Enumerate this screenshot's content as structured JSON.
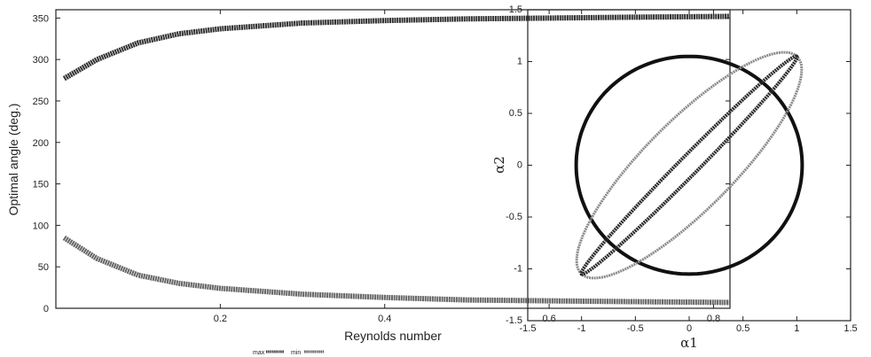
{
  "chart_data": [
    {
      "type": "line",
      "xlabel": "Reynolds number",
      "ylabel": "Optimal angle (deg.)",
      "xlim": [
        0,
        0.82
      ],
      "ylim": [
        0,
        360
      ],
      "xticks": [
        "0.2",
        "0.4",
        "0.6",
        "0.8"
      ],
      "xtick_values": [
        0.2,
        0.4,
        0.6,
        0.8
      ],
      "yticks": [
        "0",
        "50",
        "100",
        "150",
        "200",
        "250",
        "300",
        "350"
      ],
      "ytick_values": [
        0,
        50,
        100,
        150,
        200,
        250,
        300,
        350
      ],
      "legend": {
        "placement": "bottom-center",
        "entries": [
          "max",
          "min"
        ]
      },
      "series": [
        {
          "name": "max",
          "color": "#333333",
          "x": [
            0.01,
            0.05,
            0.1,
            0.15,
            0.2,
            0.3,
            0.4,
            0.5,
            0.6,
            0.7,
            0.82
          ],
          "y": [
            277,
            300,
            320,
            331,
            337,
            344,
            347,
            349,
            350,
            351,
            352
          ]
        },
        {
          "name": "min",
          "color": "#666666",
          "x": [
            0.01,
            0.05,
            0.1,
            0.15,
            0.2,
            0.3,
            0.4,
            0.5,
            0.6,
            0.7,
            0.82
          ],
          "y": [
            85,
            60,
            40,
            30,
            24,
            17,
            13,
            10,
            9,
            8,
            7
          ]
        }
      ]
    },
    {
      "type": "scatter",
      "xlabel": "α1",
      "ylabel": "α2",
      "xlim": [
        -1.5,
        1.5
      ],
      "ylim": [
        -1.5,
        1.5
      ],
      "xticks": [
        "-1.5",
        "-1",
        "-0.5",
        "0",
        "0.5",
        "1",
        "1.5"
      ],
      "xtick_values": [
        -1.5,
        -1,
        -0.5,
        0,
        0.5,
        1,
        1.5
      ],
      "yticks": [
        "-1.5",
        "-1",
        "-0.5",
        "0",
        "0.5",
        "1",
        "1.5"
      ],
      "ytick_values": [
        -1.5,
        -1,
        -0.5,
        0,
        0.5,
        1,
        1.5
      ],
      "series": [
        {
          "shape": "circle",
          "color": "#111111",
          "center": [
            0,
            0
          ],
          "radius": 1.05
        },
        {
          "shape": "ellipse",
          "color": "#8a8a8a",
          "endpoints": [
            [
              -1.0,
              -1.05
            ],
            [
              1.0,
              1.05
            ]
          ],
          "minor_halfwidth": 0.42
        },
        {
          "shape": "ellipse",
          "color": "#2a2a2a",
          "endpoints": [
            [
              -1.0,
              -1.05
            ],
            [
              1.0,
              1.05
            ]
          ],
          "minor_halfwidth": 0.09
        }
      ]
    }
  ]
}
